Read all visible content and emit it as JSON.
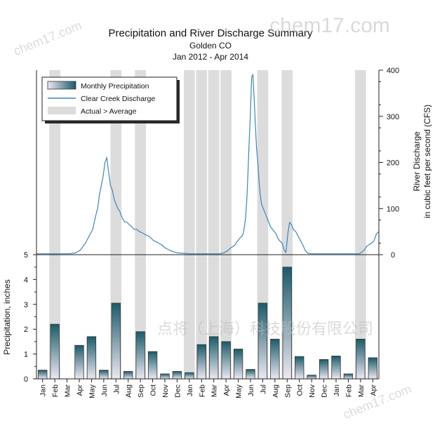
{
  "chart_data": {
    "type": "bar+line",
    "title": "Precipitation and River Discharge Summary",
    "subtitle": "Golden CO",
    "subtitle2": "Jan 2012 - Apr 2014",
    "months": [
      "Jan",
      "Feb",
      "Mar",
      "Apr",
      "May",
      "Jun",
      "Jul",
      "Aug",
      "Sep",
      "Oct",
      "Nov",
      "Dec",
      "Jan",
      "Feb",
      "Mar",
      "Apr",
      "May",
      "Jun",
      "Jul",
      "Aug",
      "Sep",
      "Oct",
      "Nov",
      "Dec",
      "Jan",
      "Feb",
      "Mar",
      "Apr"
    ],
    "precipitation": {
      "name": "Monthly Precipitation",
      "unit_label": "Precipitation, inches",
      "values": [
        0.35,
        2.2,
        0.0,
        1.35,
        1.7,
        0.35,
        3.05,
        0.3,
        1.9,
        1.1,
        0.2,
        0.3,
        0.25,
        1.38,
        1.7,
        1.5,
        1.2,
        0.38,
        3.05,
        1.6,
        4.5,
        0.9,
        0.15,
        0.78,
        0.92,
        0.2,
        1.6,
        0.85
      ],
      "ylim": [
        0,
        5
      ],
      "yticks": [
        0,
        1,
        2,
        3,
        4,
        5
      ]
    },
    "discharge": {
      "name": "Clear Creek Discharge",
      "ylabel_line1": "River Discharge",
      "ylabel_line2": "in cubic feet per second (CFS)",
      "ylim": [
        0,
        400
      ],
      "yticks": [
        0,
        100,
        200,
        300,
        400
      ],
      "x": [
        0,
        0.3,
        0.6,
        0.9,
        1.2,
        1.5,
        1.8,
        2.1,
        2.4,
        2.7,
        3.0,
        3.2,
        3.4,
        3.6,
        3.8,
        4.0,
        4.2,
        4.4,
        4.6,
        4.8,
        5.0,
        5.15,
        5.3,
        5.45,
        5.6,
        5.75,
        5.9,
        6.05,
        6.2,
        6.35,
        6.5,
        6.65,
        6.8,
        7.0,
        7.2,
        7.4,
        7.6,
        7.8,
        8.0,
        8.2,
        8.4,
        8.6,
        8.8,
        9.0,
        9.2,
        9.4,
        9.6,
        9.8,
        10.0,
        10.2,
        10.5,
        11,
        11.5,
        12,
        12.5,
        13,
        13.5,
        14,
        14.5,
        15,
        15.3,
        15.6,
        15.9,
        16.2,
        16.4,
        16.6,
        16.8,
        16.9,
        17.0,
        17.1,
        17.2,
        17.3,
        17.4,
        17.5,
        17.6,
        17.7,
        17.8,
        17.9,
        18.0,
        18.1,
        18.2,
        18.3,
        18.4,
        18.55,
        18.7,
        18.85,
        19.0,
        19.15,
        19.3,
        19.45,
        19.6,
        19.75,
        19.9,
        20.1,
        20.25,
        20.4,
        20.55,
        20.7,
        20.85,
        21.0,
        21.2,
        21.4,
        21.6,
        21.8,
        22.0,
        22.2,
        22.5,
        23,
        23.5,
        24,
        24.5,
        25,
        25.5,
        25.8,
        26.1,
        26.4,
        26.6,
        26.8,
        27.0,
        27.2,
        27.4,
        27.6,
        27.8,
        28.0
      ],
      "values": [
        2,
        2,
        2,
        2,
        2,
        2,
        2,
        2,
        2,
        2,
        3,
        4,
        7,
        10,
        18,
        25,
        35,
        45,
        55,
        80,
        100,
        130,
        150,
        170,
        200,
        210,
        180,
        150,
        140,
        120,
        110,
        100,
        95,
        80,
        72,
        70,
        65,
        60,
        55,
        55,
        50,
        48,
        45,
        42,
        40,
        35,
        30,
        28,
        25,
        22,
        15,
        8,
        4,
        3,
        2,
        2,
        2,
        2,
        2,
        2,
        4,
        8,
        15,
        20,
        28,
        35,
        40,
        45,
        60,
        80,
        120,
        180,
        250,
        310,
        385,
        390,
        340,
        280,
        230,
        200,
        160,
        130,
        110,
        100,
        90,
        80,
        70,
        60,
        55,
        50,
        45,
        35,
        30,
        25,
        10,
        5,
        45,
        70,
        65,
        55,
        50,
        40,
        30,
        20,
        8,
        3,
        2,
        2,
        2,
        2,
        2,
        2,
        2,
        2,
        2,
        2,
        5,
        10,
        18,
        22,
        25,
        30,
        45,
        50
      ],
      "xlim": [
        0,
        28
      ]
    },
    "above_average_months": [
      1,
      6,
      8,
      12,
      13,
      14,
      15,
      18,
      20,
      26
    ],
    "legend": {
      "position": "top-left",
      "items": [
        "Monthly Precipitation",
        "Clear Creek Discharge",
        "Actual > Average"
      ]
    },
    "colors": {
      "bar_top": "#1a5b6a",
      "bar_bottom": "#ece8f2",
      "bar_edge": "#333333",
      "line": "#3a86b8",
      "shade": "#dcdcdc",
      "axis": "#222222"
    }
  },
  "watermarks": {
    "top_right": "chem17.com",
    "top_left": "chem17.com",
    "bottom_right": "chem17.com",
    "center": "点将（上海）科技股份有限公司"
  }
}
